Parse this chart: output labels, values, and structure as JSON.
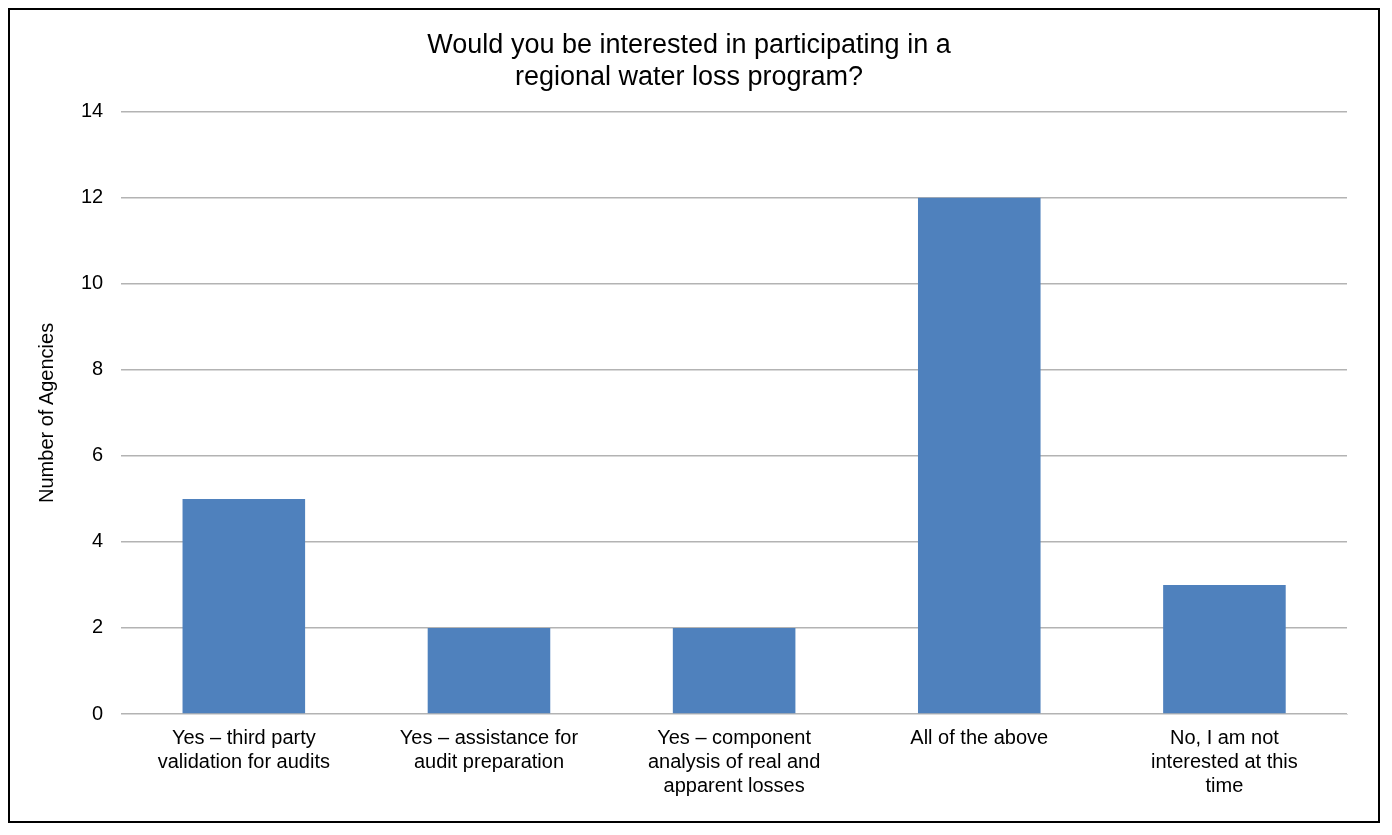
{
  "chart_data": {
    "type": "bar",
    "title": "Would you be interested in participating in a regional water loss program?",
    "ylabel": "Number of Agencies",
    "categories": [
      "Yes – third party validation for audits",
      "Yes – assistance for audit preparation",
      "Yes – component analysis of real and apparent losses",
      "All of the above",
      "No, I am not interested at this time"
    ],
    "values": [
      5,
      2,
      2,
      12,
      3
    ],
    "color": "#4f81bd",
    "ylim": [
      0,
      14
    ],
    "yticks": [
      0,
      2,
      4,
      6,
      8,
      10,
      12,
      14
    ],
    "grid": "y",
    "legend": false
  }
}
